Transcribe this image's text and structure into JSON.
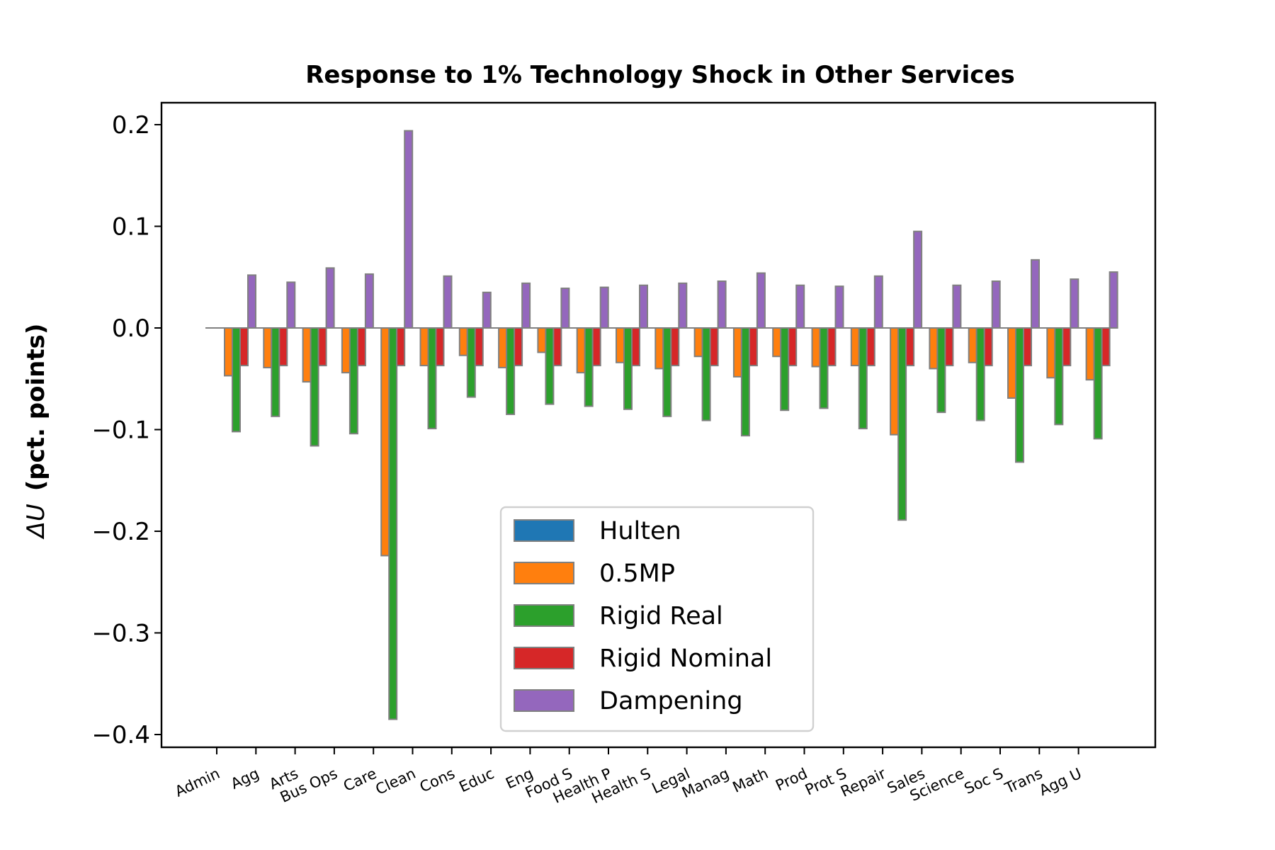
{
  "chart_data": {
    "type": "bar",
    "title": "Response to 1% Technology Shock in Other Services",
    "ylabel": "ΔU  (pct. points)",
    "ylabel_math": "ΔU",
    "ylabel_rest": "(pct. points)",
    "xlabel": "",
    "ylim": [
      -0.415,
      0.222
    ],
    "yticks": [
      0.2,
      0.1,
      0.0,
      -0.1,
      -0.2,
      -0.3,
      -0.4
    ],
    "ytick_labels": [
      "0.2",
      "0.1",
      "0.0",
      "−0.1",
      "−0.2",
      "−0.3",
      "−0.4"
    ],
    "grid": false,
    "legend_position": "lower center",
    "bar_edge_color": "#808080",
    "categories": [
      "Admin",
      "Agg",
      "Arts",
      "Bus Ops",
      "Care",
      "Clean",
      "Cons",
      "Educ",
      "Eng",
      "Food S",
      "Health P",
      "Health S",
      "Legal",
      "Manag",
      "Math",
      "Prod",
      "Prot S",
      "Repair",
      "Sales",
      "Science",
      "Soc S",
      "Trans",
      "Agg U"
    ],
    "series": [
      {
        "name": "Hulten",
        "color": "#1f77b4",
        "values": [
          0,
          0,
          0,
          0,
          0,
          0,
          0,
          0,
          0,
          0,
          0,
          0,
          0,
          0,
          0,
          0,
          0,
          0,
          0,
          0,
          0,
          0,
          0
        ]
      },
      {
        "name": "0.5MP",
        "color": "#ff7f0e",
        "values": [
          -0.047,
          -0.039,
          -0.053,
          -0.044,
          -0.224,
          -0.037,
          -0.027,
          -0.039,
          -0.024,
          -0.044,
          -0.034,
          -0.04,
          -0.028,
          -0.048,
          -0.028,
          -0.038,
          -0.037,
          -0.105,
          -0.04,
          -0.034,
          -0.069,
          -0.049,
          -0.051
        ]
      },
      {
        "name": "Rigid Real",
        "color": "#2ca02c",
        "values": [
          -0.102,
          -0.087,
          -0.116,
          -0.104,
          -0.385,
          -0.099,
          -0.068,
          -0.085,
          -0.075,
          -0.077,
          -0.08,
          -0.087,
          -0.091,
          -0.106,
          -0.081,
          -0.079,
          -0.099,
          -0.189,
          -0.083,
          -0.091,
          -0.132,
          -0.095,
          -0.109
        ]
      },
      {
        "name": "Rigid Nominal",
        "color": "#d62728",
        "values": [
          -0.037,
          -0.037,
          -0.037,
          -0.037,
          -0.037,
          -0.037,
          -0.037,
          -0.037,
          -0.037,
          -0.037,
          -0.037,
          -0.037,
          -0.037,
          -0.037,
          -0.037,
          -0.037,
          -0.037,
          -0.037,
          -0.037,
          -0.037,
          -0.037,
          -0.037,
          -0.037
        ]
      },
      {
        "name": "Dampening",
        "color": "#9467bd",
        "values": [
          0.052,
          0.045,
          0.059,
          0.053,
          0.194,
          0.051,
          0.035,
          0.044,
          0.039,
          0.04,
          0.042,
          0.044,
          0.046,
          0.054,
          0.042,
          0.041,
          0.051,
          0.095,
          0.042,
          0.046,
          0.067,
          0.048,
          0.055
        ]
      }
    ]
  }
}
